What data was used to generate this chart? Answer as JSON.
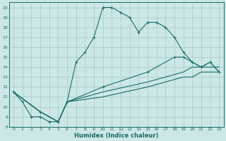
{
  "xlabel": "Humidex (Indice chaleur)",
  "bg_color": "#cce8e6",
  "grid_color": "#aaccca",
  "line_color": "#1a6b6b",
  "xlim": [
    -0.5,
    23.5
  ],
  "ylim": [
    8,
    20.5
  ],
  "xticks": [
    0,
    1,
    2,
    3,
    4,
    5,
    6,
    7,
    8,
    9,
    10,
    11,
    12,
    13,
    14,
    15,
    16,
    17,
    18,
    19,
    20,
    21,
    22,
    23
  ],
  "yticks": [
    8,
    9,
    10,
    11,
    12,
    13,
    14,
    15,
    16,
    17,
    18,
    19,
    20
  ],
  "series": [
    {
      "x": [
        0,
        1,
        2,
        3,
        4,
        5,
        6,
        7,
        8,
        9,
        10,
        11,
        12,
        13,
        14,
        15,
        16,
        17,
        18,
        19,
        20,
        21,
        22,
        23
      ],
      "y": [
        11.5,
        10.5,
        9.0,
        9.0,
        8.5,
        8.5,
        10.5,
        14.5,
        15.5,
        17.0,
        20.0,
        20.0,
        19.5,
        19.0,
        17.5,
        18.5,
        18.5,
        18.0,
        17.0,
        15.5,
        14.5,
        14.0,
        14.5,
        13.5
      ],
      "marker": true
    },
    {
      "x": [
        0,
        3,
        5,
        6,
        10,
        15,
        19,
        20,
        21,
        22,
        23
      ],
      "y": [
        11.5,
        9.5,
        8.5,
        10.5,
        11.0,
        12.0,
        13.0,
        13.0,
        13.5,
        13.5,
        13.5
      ],
      "marker": false
    },
    {
      "x": [
        0,
        3,
        5,
        6,
        10,
        15,
        19,
        20,
        21,
        22,
        23
      ],
      "y": [
        11.5,
        9.5,
        8.5,
        10.5,
        11.5,
        12.5,
        13.5,
        14.0,
        14.0,
        14.0,
        14.0
      ],
      "marker": false
    },
    {
      "x": [
        0,
        3,
        5,
        6,
        10,
        15,
        18,
        19,
        20,
        21,
        22,
        23
      ],
      "y": [
        11.5,
        9.5,
        8.5,
        10.5,
        12.0,
        13.5,
        15.0,
        15.0,
        14.5,
        14.0,
        14.5,
        13.5
      ],
      "marker": true
    }
  ]
}
